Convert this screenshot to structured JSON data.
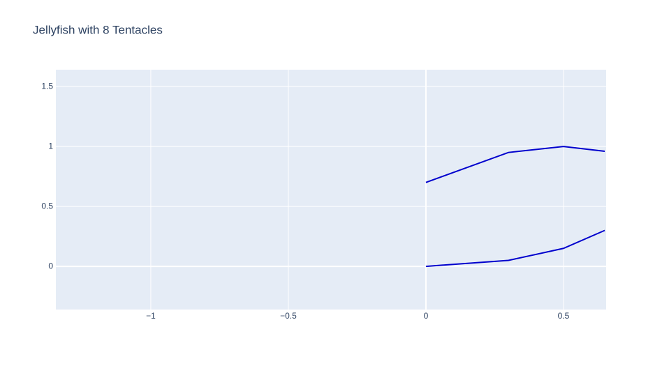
{
  "chart_data": {
    "type": "line",
    "title": "Jellyfish with 8 Tentacles",
    "series": [
      {
        "color": "#0000cd",
        "x": [
          0,
          0.3,
          0.5,
          0.65
        ],
        "values": [
          0.7,
          0.95,
          1.0,
          0.96
        ]
      },
      {
        "color": "#0000cd",
        "x": [
          0,
          0.3,
          0.5,
          0.65
        ],
        "values": [
          0,
          0.05,
          0.15,
          0.3
        ]
      }
    ],
    "xlim": [
      -1.345,
      0.655
    ],
    "ylim": [
      -0.36,
      1.64
    ],
    "xticks": [
      {
        "value": -1,
        "label": "−1"
      },
      {
        "value": -0.5,
        "label": "−0.5"
      },
      0,
      0.5
    ],
    "yticks": [
      0,
      0.5,
      1,
      1.5
    ],
    "grid": true
  }
}
